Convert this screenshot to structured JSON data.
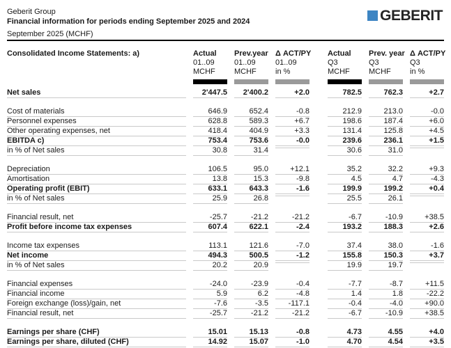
{
  "header": {
    "company": "Geberit Group",
    "title": "Financial information for periods ending September 2025 and 2024",
    "subtitle": "September 2025 (MCHF)",
    "logo_text": "GEBERIT"
  },
  "colors": {
    "accent_blue": "#3d85c3",
    "bar_black": "#000000",
    "bar_gray": "#9a9a9a",
    "row_line": "#c9c9c9"
  },
  "table": {
    "section_title": "Consolidated Income Statements: a)",
    "columns": [
      {
        "l1": "Actual",
        "l2": "01..09",
        "l3": "MCHF",
        "bar": "black"
      },
      {
        "l1": "Prev.year",
        "l2": "01..09",
        "l3": "MCHF",
        "bar": "gray"
      },
      {
        "l1": "Δ ACT/PY",
        "l2": "01..09",
        "l3": "in %",
        "bar": "gray"
      },
      {
        "l1": "Actual",
        "l2": "Q3",
        "l3": "MCHF",
        "bar": "black"
      },
      {
        "l1": "Prev. year",
        "l2": "Q3",
        "l3": "MCHF",
        "bar": "gray"
      },
      {
        "l1": "Δ ACT/PY",
        "l2": "Q3",
        "l3": "in %",
        "bar": "gray"
      }
    ],
    "rows": [
      {
        "label": "Net sales",
        "bold": true,
        "values": [
          "2'447.5",
          "2'400.2",
          "+2.0",
          "782.5",
          "762.3",
          "+2.7"
        ]
      },
      {
        "spacer": true
      },
      {
        "label": "Cost of materials",
        "bold": false,
        "values": [
          "646.9",
          "652.4",
          "-0.8",
          "212.9",
          "213.0",
          "-0.0"
        ]
      },
      {
        "label": "Personnel expenses",
        "bold": false,
        "values": [
          "628.8",
          "589.3",
          "+6.7",
          "198.6",
          "187.4",
          "+6.0"
        ]
      },
      {
        "label": "Other operating expenses, net",
        "bold": false,
        "values": [
          "418.4",
          "404.9",
          "+3.3",
          "131.4",
          "125.8",
          "+4.5"
        ]
      },
      {
        "label": "EBITDA c)",
        "bold": true,
        "values": [
          "753.4",
          "753.6",
          "-0.0",
          "239.6",
          "236.1",
          "+1.5"
        ]
      },
      {
        "label": "in % of Net sales",
        "bold": false,
        "values": [
          "30.8",
          "31.4",
          "",
          "30.6",
          "31.0",
          ""
        ]
      },
      {
        "spacer": true
      },
      {
        "label": "Depreciation",
        "bold": false,
        "values": [
          "106.5",
          "95.0",
          "+12.1",
          "35.2",
          "32.2",
          "+9.3"
        ]
      },
      {
        "label": "Amortisation",
        "bold": false,
        "values": [
          "13.8",
          "15.3",
          "-9.8",
          "4.5",
          "4.7",
          "-4.3"
        ]
      },
      {
        "label": "Operating profit (EBIT)",
        "bold": true,
        "values": [
          "633.1",
          "643.3",
          "-1.6",
          "199.9",
          "199.2",
          "+0.4"
        ]
      },
      {
        "label": "in % of Net sales",
        "bold": false,
        "values": [
          "25.9",
          "26.8",
          "",
          "25.5",
          "26.1",
          ""
        ]
      },
      {
        "spacer": true
      },
      {
        "label": "Financial result, net",
        "bold": false,
        "values": [
          "-25.7",
          "-21.2",
          "-21.2",
          "-6.7",
          "-10.9",
          "+38.5"
        ]
      },
      {
        "label": "Profit before income tax expenses",
        "bold": true,
        "values": [
          "607.4",
          "622.1",
          "-2.4",
          "193.2",
          "188.3",
          "+2.6"
        ]
      },
      {
        "spacer": true
      },
      {
        "label": "Income tax expenses",
        "bold": false,
        "values": [
          "113.1",
          "121.6",
          "-7.0",
          "37.4",
          "38.0",
          "-1.6"
        ]
      },
      {
        "label": "Net income",
        "bold": true,
        "values": [
          "494.3",
          "500.5",
          "-1.2",
          "155.8",
          "150.3",
          "+3.7"
        ]
      },
      {
        "label": "in % of Net sales",
        "bold": false,
        "values": [
          "20.2",
          "20.9",
          "",
          "19.9",
          "19.7",
          ""
        ]
      },
      {
        "spacer": true
      },
      {
        "label": "Financial expenses",
        "bold": false,
        "values": [
          "-24.0",
          "-23.9",
          "-0.4",
          "-7.7",
          "-8.7",
          "+11.5"
        ]
      },
      {
        "label": "Financial income",
        "bold": false,
        "values": [
          "5.9",
          "6.2",
          "-4.8",
          "1.4",
          "1.8",
          "-22.2"
        ]
      },
      {
        "label": "Foreign exchange (loss)/gain, net",
        "bold": false,
        "values": [
          "-7.6",
          "-3.5",
          "-117.1",
          "-0.4",
          "-4.0",
          "+90.0"
        ]
      },
      {
        "label": "Financial result, net",
        "bold": false,
        "values": [
          "-25.7",
          "-21.2",
          "-21.2",
          "-6.7",
          "-10.9",
          "+38.5"
        ]
      },
      {
        "spacer": true
      },
      {
        "label": "Earnings per share (CHF)",
        "bold": true,
        "values": [
          "15.01",
          "15.13",
          "-0.8",
          "4.73",
          "4.55",
          "+4.0"
        ]
      },
      {
        "label": "Earnings per share, diluted (CHF)",
        "bold": true,
        "values": [
          "14.92",
          "15.07",
          "-1.0",
          "4.70",
          "4.54",
          "+3.5"
        ]
      }
    ]
  }
}
